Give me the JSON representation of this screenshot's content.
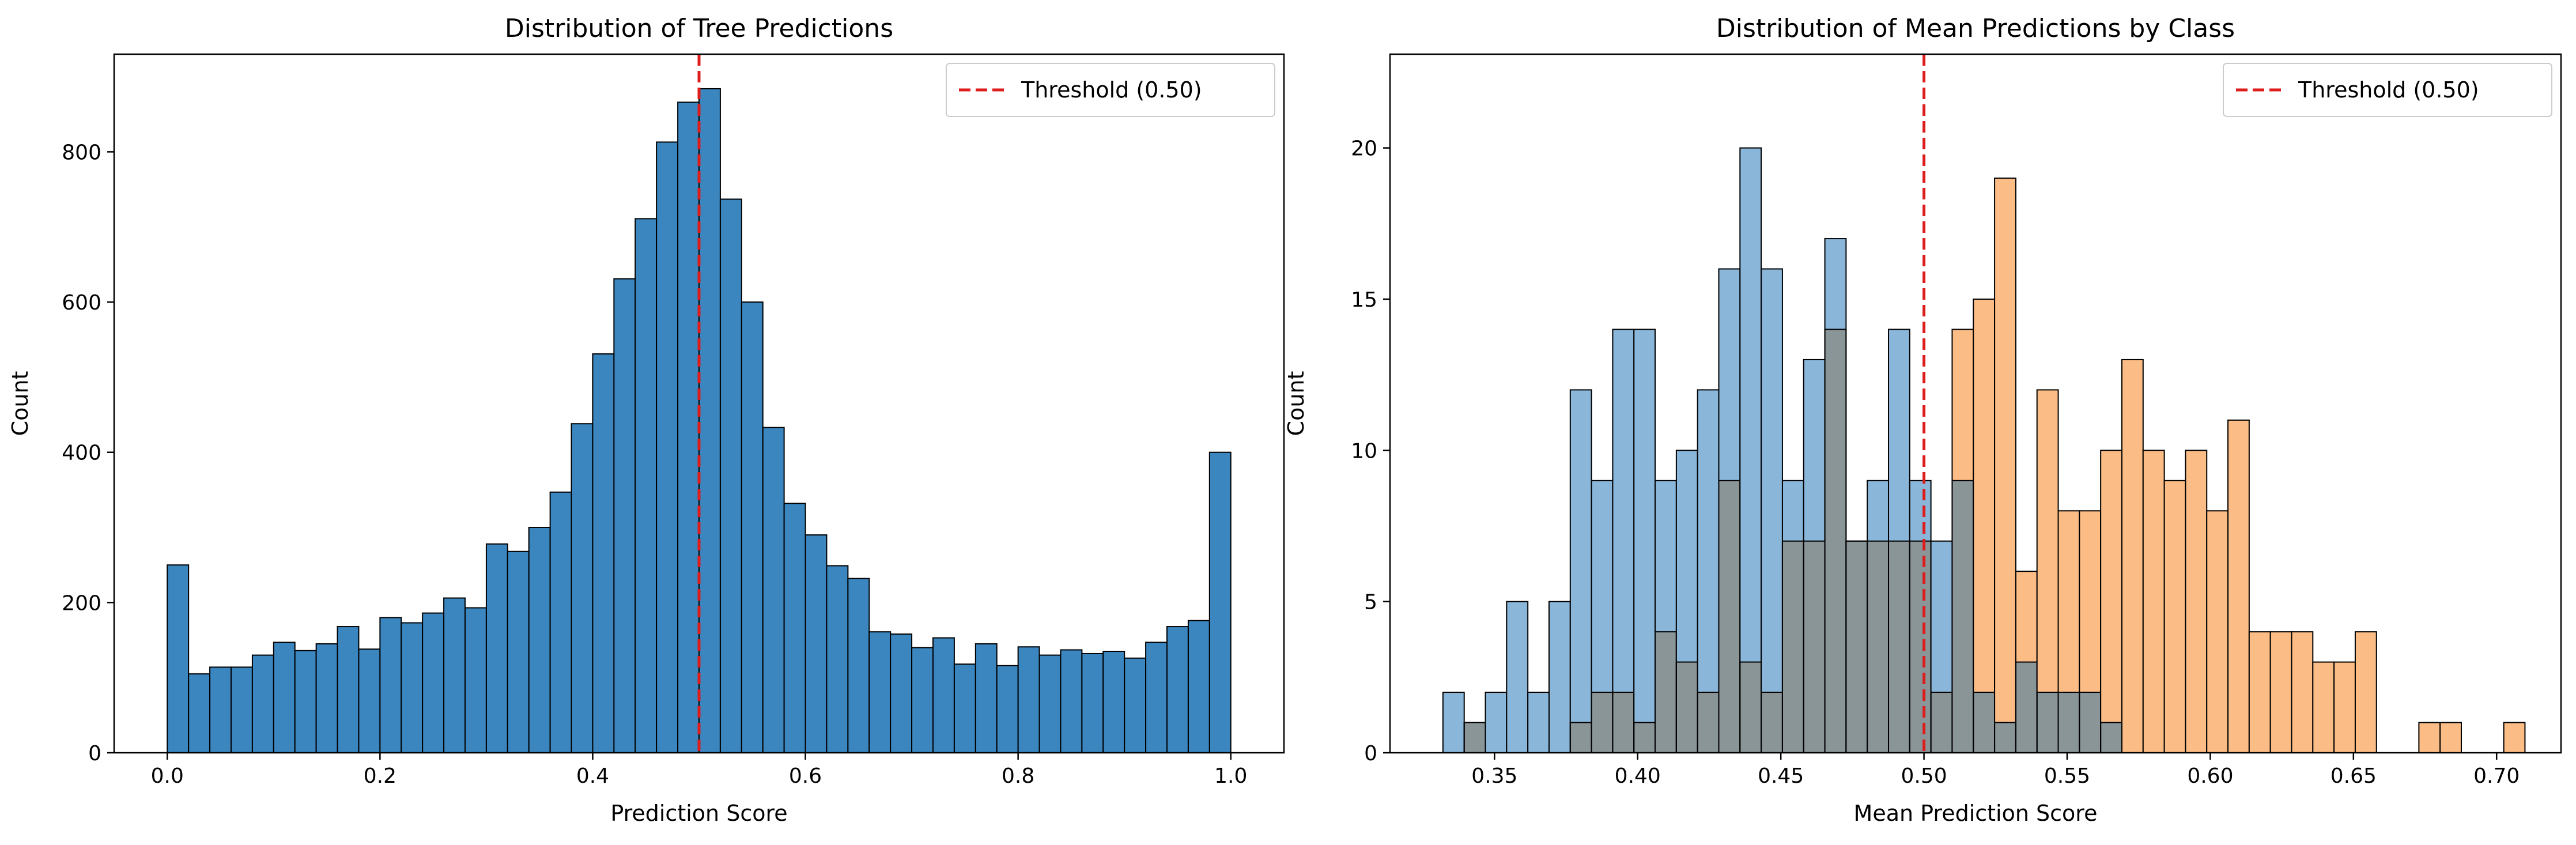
{
  "chart_data": [
    {
      "type": "bar",
      "title": "Distribution of Tree Predictions",
      "xlabel": "Prediction Score",
      "ylabel": "Count",
      "xlim": [
        -0.05,
        1.05
      ],
      "ylim": [
        0,
        930
      ],
      "xticks": [
        0.0,
        0.2,
        0.4,
        0.6,
        0.8,
        1.0
      ],
      "xtick_labels": [
        "0.0",
        "0.2",
        "0.4",
        "0.6",
        "0.8",
        "1.0"
      ],
      "yticks": [
        0,
        200,
        400,
        600,
        800
      ],
      "ytick_labels": [
        "0",
        "200",
        "400",
        "600",
        "800"
      ],
      "bin_start": 0.0,
      "bin_width": 0.02,
      "series": [
        {
          "color": "#3b86bf",
          "values": [
            250,
            105,
            114,
            114,
            130,
            147,
            136,
            145,
            168,
            138,
            180,
            173,
            186,
            206,
            193,
            278,
            268,
            300,
            347,
            438,
            531,
            631,
            711,
            813,
            866,
            884,
            737,
            600,
            433,
            332,
            290,
            249,
            232,
            161,
            158,
            140,
            153,
            118,
            145,
            116,
            141,
            130,
            137,
            132,
            135,
            126,
            147,
            168,
            176,
            400
          ]
        }
      ],
      "threshold": {
        "value": 0.5,
        "label": "Threshold (0.50)",
        "color": "#dd1c1c"
      },
      "legend_position": "top-right"
    },
    {
      "type": "bar",
      "title": "Distribution of Mean Predictions by Class",
      "xlabel": "Mean Prediction Score",
      "ylabel": "Count",
      "xlim": [
        0.3135,
        0.7225
      ],
      "ylim": [
        0,
        23.1
      ],
      "xticks": [
        0.35,
        0.4,
        0.45,
        0.5,
        0.55,
        0.6,
        0.65,
        0.7
      ],
      "xtick_labels": [
        "0.35",
        "0.40",
        "0.45",
        "0.50",
        "0.55",
        "0.60",
        "0.65",
        "0.70"
      ],
      "yticks": [
        0,
        5,
        10,
        15,
        20
      ],
      "ytick_labels": [
        "0",
        "5",
        "10",
        "15",
        "20"
      ],
      "bin_start": 0.332,
      "bin_width": 0.00741,
      "overlap_color": "#8a9598",
      "series": [
        {
          "color": "#8ab6d9",
          "values": [
            2,
            1,
            2,
            5,
            2,
            5,
            12,
            9,
            14,
            14,
            9,
            10,
            12,
            16,
            20,
            16,
            9,
            13,
            17,
            7,
            9,
            14,
            9,
            7,
            9,
            2,
            1,
            3,
            2,
            2,
            2,
            1,
            0,
            0,
            0,
            0,
            0,
            0,
            0,
            0,
            0,
            0,
            0,
            0,
            0,
            0,
            0,
            0,
            0,
            0,
            0
          ]
        },
        {
          "color": "#fbbc85",
          "values": [
            0,
            1,
            0,
            0,
            0,
            0,
            1,
            2,
            2,
            1,
            4,
            3,
            2,
            9,
            3,
            2,
            7,
            7,
            14,
            7,
            7,
            7,
            7,
            2,
            14,
            15,
            19,
            6,
            12,
            8,
            8,
            10,
            13,
            10,
            9,
            10,
            8,
            11,
            4,
            4,
            4,
            3,
            3,
            4,
            0,
            0,
            1,
            1,
            0,
            0,
            1
          ]
        }
      ],
      "threshold": {
        "value": 0.5,
        "label": "Threshold (0.50)",
        "color": "#dd1c1c"
      },
      "legend_position": "top-right"
    }
  ]
}
